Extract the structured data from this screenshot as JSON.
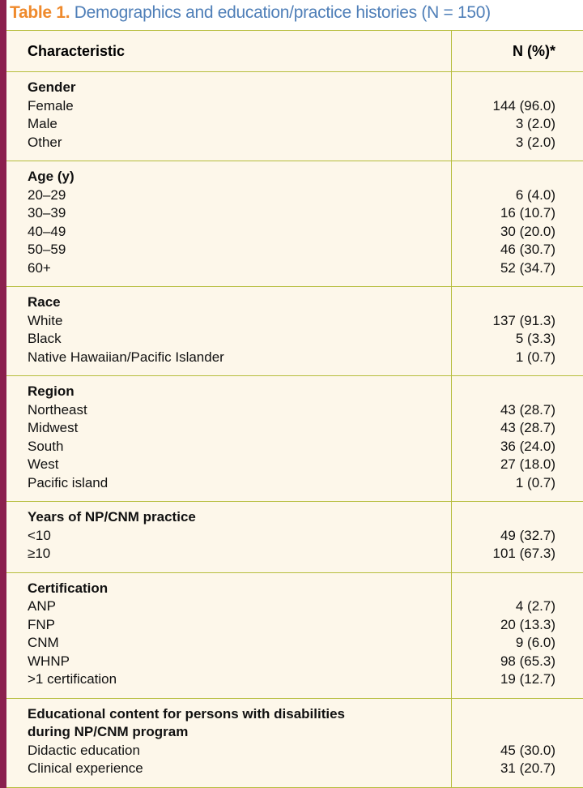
{
  "title": {
    "label": "Table 1.",
    "text": "Demographics and education/practice histories (N = 150)"
  },
  "table": {
    "columns": [
      "Characteristic",
      "N (%)*"
    ],
    "sections": [
      {
        "heading": "Gender",
        "rows": [
          [
            "Female",
            "144 (96.0)"
          ],
          [
            "Male",
            "3 (2.0)"
          ],
          [
            "Other",
            "3 (2.0)"
          ]
        ]
      },
      {
        "heading": "Age (y)",
        "rows": [
          [
            "20–29",
            "6 (4.0)"
          ],
          [
            "30–39",
            "16 (10.7)"
          ],
          [
            "40–49",
            "30 (20.0)"
          ],
          [
            "50–59",
            "46 (30.7)"
          ],
          [
            "60+",
            "52 (34.7)"
          ]
        ]
      },
      {
        "heading": "Race",
        "rows": [
          [
            "White",
            "137 (91.3)"
          ],
          [
            "Black",
            "5 (3.3)"
          ],
          [
            "Native Hawaiian/Pacific Islander",
            "1 (0.7)"
          ]
        ]
      },
      {
        "heading": "Region",
        "rows": [
          [
            "Northeast",
            "43 (28.7)"
          ],
          [
            "Midwest",
            "43 (28.7)"
          ],
          [
            "South",
            "36 (24.0)"
          ],
          [
            "West",
            "27 (18.0)"
          ],
          [
            "Pacific island",
            "1 (0.7)"
          ]
        ]
      },
      {
        "heading": "Years of NP/CNM practice",
        "rows": [
          [
            "<10",
            "49 (32.7)"
          ],
          [
            "≥10",
            "101 (67.3)"
          ]
        ]
      },
      {
        "heading": "Certification",
        "rows": [
          [
            "ANP",
            "4 (2.7)"
          ],
          [
            "FNP",
            "20 (13.3)"
          ],
          [
            "CNM",
            "9 (6.0)"
          ],
          [
            "WHNP",
            "98 (65.3)"
          ],
          [
            ">1 certification",
            "19 (12.7)"
          ]
        ]
      },
      {
        "heading": "Educational content for persons with disabilities during NP/CNM program",
        "rows": [
          [
            "Didactic education",
            "45 (30.0)"
          ],
          [
            "Clinical experience",
            "31 (20.7)"
          ]
        ]
      }
    ]
  }
}
